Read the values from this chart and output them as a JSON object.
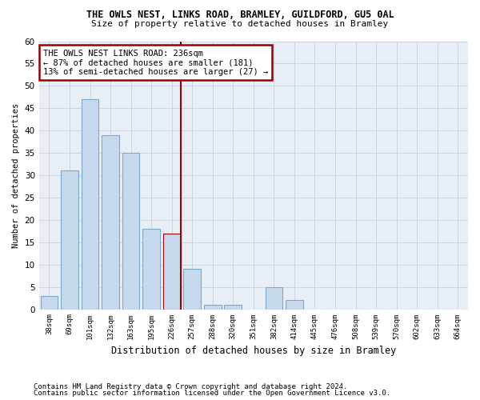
{
  "title": "THE OWLS NEST, LINKS ROAD, BRAMLEY, GUILDFORD, GU5 0AL",
  "subtitle": "Size of property relative to detached houses in Bramley",
  "xlabel": "Distribution of detached houses by size in Bramley",
  "ylabel": "Number of detached properties",
  "categories": [
    "38sqm",
    "69sqm",
    "101sqm",
    "132sqm",
    "163sqm",
    "195sqm",
    "226sqm",
    "257sqm",
    "288sqm",
    "320sqm",
    "351sqm",
    "382sqm",
    "414sqm",
    "445sqm",
    "476sqm",
    "508sqm",
    "539sqm",
    "570sqm",
    "602sqm",
    "633sqm",
    "664sqm"
  ],
  "values": [
    3,
    31,
    47,
    39,
    35,
    18,
    17,
    9,
    1,
    1,
    0,
    5,
    2,
    0,
    0,
    0,
    0,
    0,
    0,
    0,
    0
  ],
  "bar_color": "#c6d9ec",
  "bar_edge_color": "#7aaac8",
  "highlight_bar_index": 6,
  "highlight_edge_color": "#990000",
  "vline_color": "#990000",
  "annotation_box_text": "THE OWLS NEST LINKS ROAD: 236sqm\n← 87% of detached houses are smaller (181)\n13% of semi-detached houses are larger (27) →",
  "annotation_box_edge_color": "#990000",
  "ylim": [
    0,
    60
  ],
  "yticks": [
    0,
    5,
    10,
    15,
    20,
    25,
    30,
    35,
    40,
    45,
    50,
    55,
    60
  ],
  "grid_color": "#c8d0dc",
  "bg_color": "#e8eef5",
  "footer1": "Contains HM Land Registry data © Crown copyright and database right 2024.",
  "footer2": "Contains public sector information licensed under the Open Government Licence v3.0."
}
